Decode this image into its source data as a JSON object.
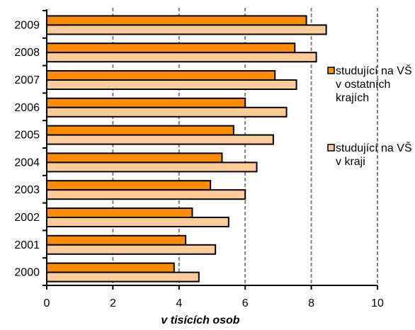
{
  "chart_data": {
    "type": "bar",
    "orientation": "horizontal",
    "categories": [
      "2000",
      "2001",
      "2002",
      "2003",
      "2004",
      "2005",
      "2006",
      "2007",
      "2008",
      "2009"
    ],
    "series": [
      {
        "name": "studující na VŠ v ostatních krajích",
        "color": "#ff8c00",
        "values": [
          3.85,
          4.2,
          4.4,
          4.95,
          5.3,
          5.65,
          6.0,
          6.9,
          7.5,
          7.85
        ]
      },
      {
        "name": "studující na VŠ v kraji",
        "color": "#ffcc99",
        "values": [
          4.6,
          5.1,
          5.5,
          6.0,
          6.35,
          6.85,
          7.25,
          7.55,
          8.15,
          8.45
        ]
      }
    ],
    "xlabel": "v tisících osob",
    "xlim": [
      0,
      10
    ],
    "xticks": [
      0,
      2,
      4,
      6,
      8,
      10
    ],
    "grid": "vertical dashed",
    "legend": "right"
  },
  "legend": {
    "items": [
      {
        "lines": [
          "studující na VŠ",
          "v ostatních",
          "krajích"
        ]
      },
      {
        "lines": [
          "studující na VŠ",
          "v kraji"
        ]
      }
    ]
  }
}
